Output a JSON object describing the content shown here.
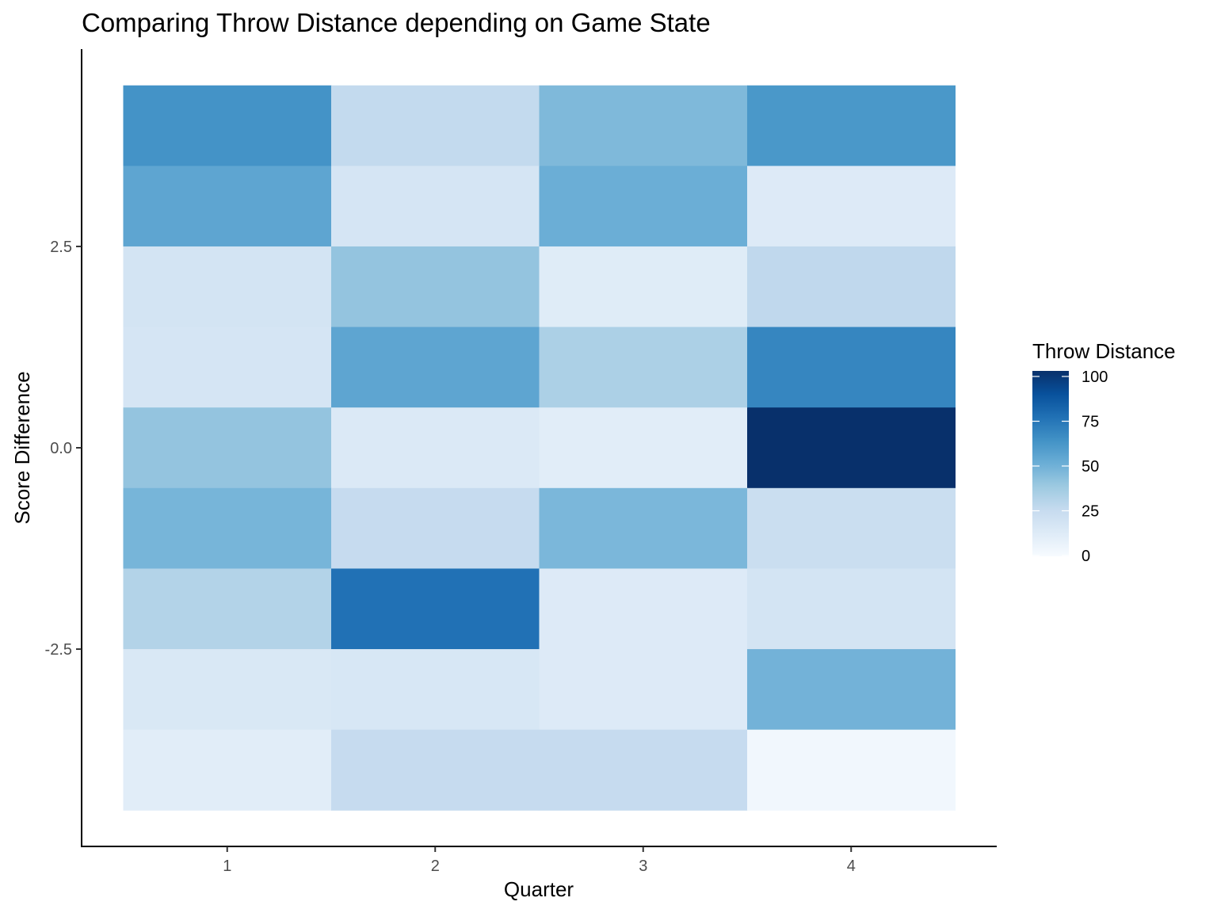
{
  "chart_data": {
    "type": "heatmap",
    "title": "Comparing Throw Distance depending on Game State",
    "xlabel": "Quarter",
    "ylabel": "Score Difference",
    "x_categories": [
      1,
      2,
      3,
      4
    ],
    "x_tick_labels": [
      "1",
      "2",
      "3",
      "4"
    ],
    "y_values": [
      4,
      3,
      2,
      1,
      0,
      -1,
      -2,
      -3,
      -4
    ],
    "y_ticks": [
      2.5,
      0.0,
      -2.5
    ],
    "y_tick_labels": [
      "2.5",
      "0.0",
      "-2.5"
    ],
    "ylim": [
      -4.5,
      4.5
    ],
    "legend": {
      "title": "Throw Distance",
      "placement": "right",
      "ticks": [
        100,
        75,
        50,
        25,
        0
      ],
      "tick_labels": [
        "100",
        "75",
        "50",
        "25",
        "0"
      ],
      "range": [
        0,
        100
      ]
    },
    "colors": {
      "low": "#f7fbff",
      "high": "#08306b",
      "scale": [
        "#f7fbff",
        "#deebf7",
        "#c6dbef",
        "#9ecae1",
        "#6baed6",
        "#4292c6",
        "#2171b5",
        "#08519c",
        "#08306b"
      ]
    },
    "values": [
      [
        62,
        26,
        45,
        60
      ],
      [
        54,
        17,
        50,
        13
      ],
      [
        18,
        40,
        12,
        27
      ],
      [
        17,
        54,
        33,
        67
      ],
      [
        40,
        14,
        11,
        100
      ],
      [
        47,
        25,
        46,
        23
      ],
      [
        31,
        75,
        13,
        18
      ],
      [
        15,
        16,
        13,
        48
      ],
      [
        11,
        25,
        25,
        3
      ]
    ],
    "grid": false
  }
}
